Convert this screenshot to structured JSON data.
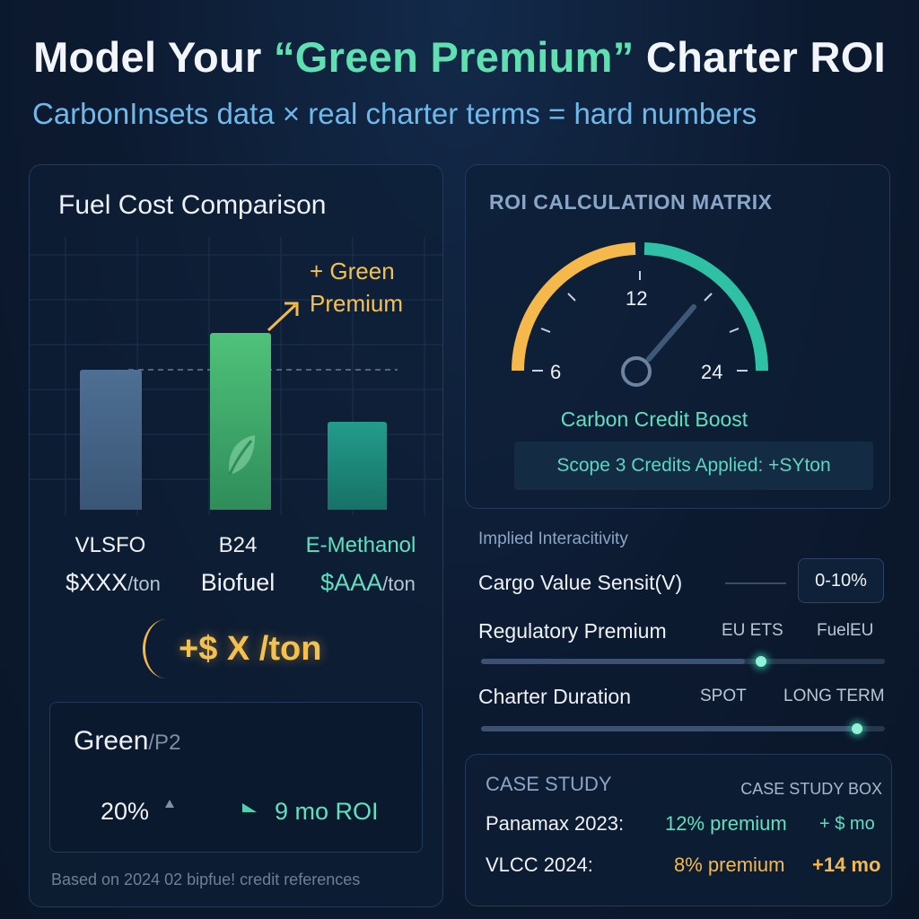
{
  "header": {
    "title_pre": "Model Your ",
    "title_hl": "“Green Premium”",
    "title_post": " Charter ROI",
    "subtitle": "CarbonInsets data × real charter terms = hard numbers"
  },
  "fuel_panel": {
    "title": "Fuel Cost Comparison",
    "annotation_line1": "+ Green",
    "annotation_line2": "Premium",
    "bars": [
      {
        "name": "VLSFO",
        "price_main": "$XXX",
        "price_unit": "/ton"
      },
      {
        "name": "B24",
        "price_main": "Biofuel",
        "price_unit": ""
      },
      {
        "name": "E-Methanol",
        "price_main": "$AAA",
        "price_unit": "/ton"
      }
    ],
    "delta": "+$ X /ton",
    "summary": {
      "label": "Green",
      "label_suffix": "/P2",
      "percent": "20%",
      "roi": "9 mo ROI"
    },
    "footnote": "Based on 2024 02 bipfue! credit references"
  },
  "roi_panel": {
    "title": "ROI CALCULATION MATRIX",
    "gauge": {
      "min_label": "6",
      "mid_label": "12",
      "max_label": "24",
      "value": 18
    },
    "boost_label": "Carbon Credit Boost",
    "scope_label": "Scope 3 Credits Applied: +SYton"
  },
  "controls": {
    "heading": "Implied Interacitivity",
    "cargo": {
      "label": "Cargo Value Sensit(V)",
      "range": "0-10%"
    },
    "regulatory": {
      "label": "Regulatory Premium",
      "opt1": "EU ETS",
      "opt2": "FuelEU",
      "level": 0.7
    },
    "duration": {
      "label": "Charter Duration",
      "opt1": "SPOT",
      "opt2": "LONG TERM",
      "level": 0.92
    }
  },
  "case_study": {
    "title": "CASE STUDY",
    "tag": "CASE STUDY BOX",
    "rows": [
      {
        "vessel": "Panamax 2023:",
        "premium": "12% premium",
        "payback": "+ $ mo"
      },
      {
        "vessel": "VLCC 2024:",
        "premium": "8% premium",
        "payback": "+14 mo"
      }
    ]
  },
  "colors": {
    "green": "#5fe0b0",
    "amber": "#f5b94b",
    "teal": "#2fc1a5",
    "blue": "#6fb9ea"
  }
}
